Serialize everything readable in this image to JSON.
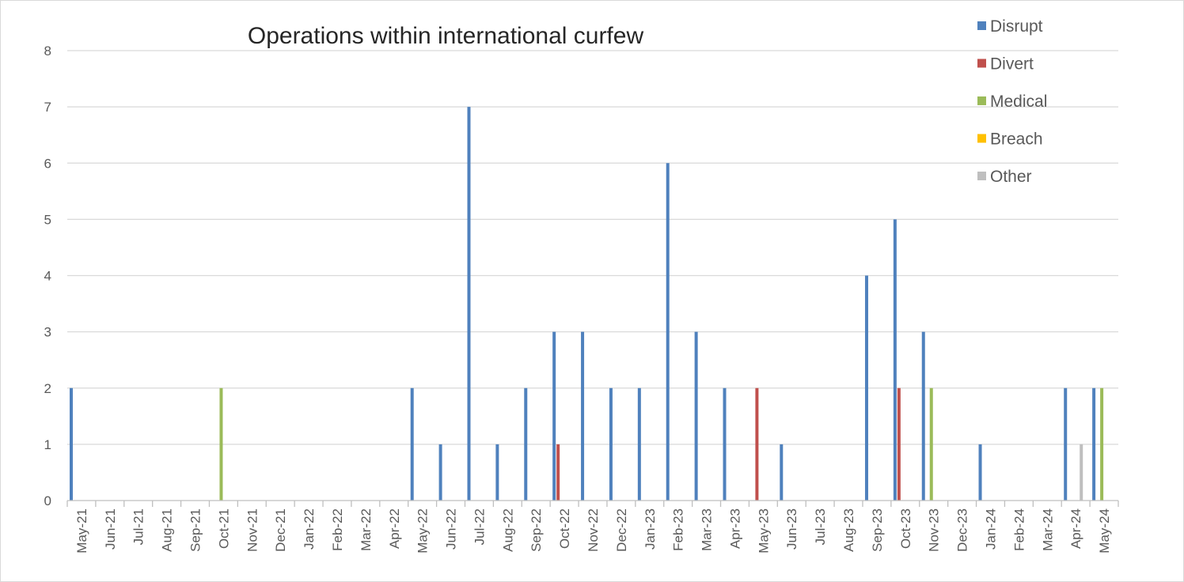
{
  "chart_data": {
    "type": "bar",
    "title": "Operations within international curfew",
    "xlabel": "",
    "ylabel": "",
    "ylim": [
      0,
      8
    ],
    "yticks": [
      "0",
      "1",
      "2",
      "3",
      "4",
      "5",
      "6",
      "7",
      "8"
    ],
    "grid": true,
    "legend_position": "top-right",
    "categories": [
      "May-21",
      "Jun-21",
      "Jul-21",
      "Aug-21",
      "Sep-21",
      "Oct-21",
      "Nov-21",
      "Dec-21",
      "Jan-22",
      "Feb-22",
      "Mar-22",
      "Apr-22",
      "May-22",
      "Jun-22",
      "Jul-22",
      "Aug-22",
      "Sep-22",
      "Oct-22",
      "Nov-22",
      "Dec-22",
      "Jan-23",
      "Feb-23",
      "Mar-23",
      "Apr-23",
      "May-23",
      "Jun-23",
      "Jul-23",
      "Aug-23",
      "Sep-23",
      "Oct-23",
      "Nov-23",
      "Dec-23",
      "Jan-24",
      "Feb-24",
      "Mar-24",
      "Apr-24",
      "May-24"
    ],
    "series": [
      {
        "name": "Disrupt",
        "color": "#4f81bd",
        "values": [
          2,
          0,
          0,
          0,
          0,
          0,
          0,
          0,
          0,
          0,
          0,
          0,
          2,
          1,
          7,
          1,
          2,
          3,
          3,
          2,
          2,
          6,
          3,
          2,
          0,
          1,
          0,
          0,
          4,
          5,
          3,
          0,
          1,
          0,
          0,
          2,
          2
        ]
      },
      {
        "name": "Divert",
        "color": "#c0504d",
        "values": [
          0,
          0,
          0,
          0,
          0,
          0,
          0,
          0,
          0,
          0,
          0,
          0,
          0,
          0,
          0,
          0,
          0,
          1,
          0,
          0,
          0,
          0,
          0,
          0,
          2,
          0,
          0,
          0,
          0,
          2,
          0,
          0,
          0,
          0,
          0,
          0,
          0
        ]
      },
      {
        "name": "Medical",
        "color": "#9bbb59",
        "values": [
          0,
          0,
          0,
          0,
          0,
          2,
          0,
          0,
          0,
          0,
          0,
          0,
          0,
          0,
          0,
          0,
          0,
          0,
          0,
          0,
          0,
          0,
          0,
          0,
          0,
          0,
          0,
          0,
          0,
          0,
          2,
          0,
          0,
          0,
          0,
          0,
          2
        ]
      },
      {
        "name": "Breach",
        "color": "#ffc000",
        "values": [
          0,
          0,
          0,
          0,
          0,
          0,
          0,
          0,
          0,
          0,
          0,
          0,
          0,
          0,
          0,
          0,
          0,
          0,
          0,
          0,
          0,
          0,
          0,
          0,
          0,
          0,
          0,
          0,
          0,
          0,
          0,
          0,
          0,
          0,
          0,
          0,
          0
        ]
      },
      {
        "name": "Other",
        "color": "#bfbfbf",
        "values": [
          0,
          0,
          0,
          0,
          0,
          0,
          0,
          0,
          0,
          0,
          0,
          0,
          0,
          0,
          0,
          0,
          0,
          0,
          0,
          0,
          0,
          0,
          0,
          0,
          0,
          0,
          0,
          0,
          0,
          0,
          0,
          0,
          0,
          0,
          0,
          1,
          0
        ]
      }
    ]
  },
  "colors": {
    "gridline": "#d9d9d9",
    "axis_line": "#bfbfbf",
    "text": "#595959",
    "title_text": "#262626"
  }
}
